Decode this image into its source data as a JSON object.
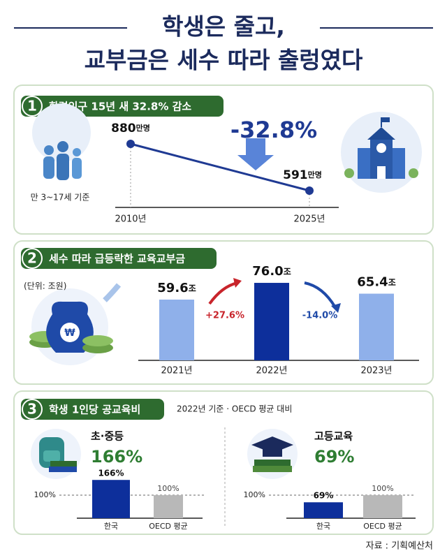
{
  "header": {
    "title": [
      "학생은 줄고,",
      "교부금은 세수 따라 출렁였다"
    ]
  },
  "sections": [
    {
      "number": "1",
      "heading": "학령인구 15년 새 32.8% 감소",
      "note": "만 3~17세 기준"
    },
    {
      "number": "2",
      "heading": "세수 따라 급등락한 교육교부금",
      "note": "(단위: 조원)"
    },
    {
      "number": "3",
      "heading": "학생 1인당 공교육비",
      "note": "2022년 기준 · OECD 평균 대비"
    }
  ],
  "chart_data": [
    {
      "type": "line",
      "x": [
        "2010년",
        "2025년"
      ],
      "values": [
        880,
        591
      ],
      "unit": "만명",
      "color": "#1f3a93",
      "annotation": "-32.8%"
    },
    {
      "type": "bar",
      "categories": [
        "2021년",
        "2022년",
        "2023년"
      ],
      "values": [
        59.6,
        76.0,
        65.4
      ],
      "value_labels": [
        "59.6",
        "76.0",
        "65.4"
      ],
      "unit": "조",
      "colors": [
        "#8fb0ea",
        "#0d2f9b",
        "#8fb0ea"
      ],
      "annotations": [
        "+27.6%",
        "-14.0%"
      ]
    },
    {
      "type": "bar",
      "title": "초·중등",
      "headline": "166%",
      "categories": [
        "한국",
        "OECD 평균"
      ],
      "values": [
        166,
        100
      ],
      "value_labels": [
        "166%",
        "100%"
      ],
      "colors": [
        "#0d2f9b",
        "#b8b8b8"
      ],
      "reference": {
        "value": 100,
        "label": "100%"
      }
    },
    {
      "type": "bar",
      "title": "고등교육",
      "headline": "69%",
      "categories": [
        "한국",
        "OECD 평균"
      ],
      "values": [
        69,
        100
      ],
      "value_labels": [
        "69%",
        "100%"
      ],
      "colors": [
        "#0d2f9b",
        "#b8b8b8"
      ],
      "reference": {
        "value": 100,
        "label": "100%"
      }
    }
  ],
  "source": "자료 : 기획예산처"
}
